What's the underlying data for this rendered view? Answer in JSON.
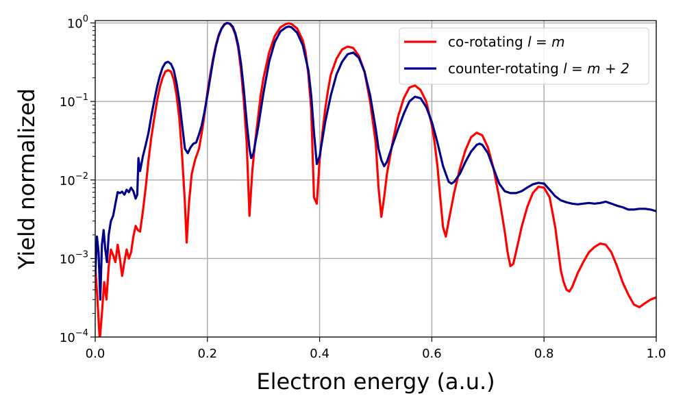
{
  "chart_data": {
    "type": "line",
    "xlabel": "Electron energy (a.u.)",
    "ylabel": "Yield normalized",
    "xlim": [
      0.0,
      1.0
    ],
    "ylim": [
      0.0001,
      1.1
    ],
    "yscale": "log",
    "grid": true,
    "legend_position": "top-right",
    "x_ticks": [
      {
        "value": 0.0,
        "label": "0.0"
      },
      {
        "value": 0.2,
        "label": "0.2"
      },
      {
        "value": 0.4,
        "label": "0.4"
      },
      {
        "value": 0.6,
        "label": "0.6"
      },
      {
        "value": 0.8,
        "label": "0.8"
      },
      {
        "value": 1.0,
        "label": "1.0"
      }
    ],
    "y_ticks": [
      {
        "value": 1,
        "base": "10",
        "exp": "0"
      },
      {
        "value": 0.1,
        "base": "10",
        "exp": "−1"
      },
      {
        "value": 0.01,
        "base": "10",
        "exp": "−2"
      },
      {
        "value": 0.001,
        "base": "10",
        "exp": "−3"
      },
      {
        "value": 0.0001,
        "base": "10",
        "exp": "−4"
      }
    ],
    "series": [
      {
        "name": "co-rotating l = m",
        "legend": {
          "plain": "co-rotating ",
          "math": "l = m"
        },
        "color": "#ff0000",
        "points": [
          [
            0.0,
            0.0008
          ],
          [
            0.004,
            0.0003
          ],
          [
            0.008,
            9e-05
          ],
          [
            0.012,
            0.0002
          ],
          [
            0.016,
            0.0005
          ],
          [
            0.02,
            0.0003
          ],
          [
            0.024,
            0.0008
          ],
          [
            0.028,
            0.0013
          ],
          [
            0.032,
            0.0011
          ],
          [
            0.036,
            0.0009
          ],
          [
            0.04,
            0.0015
          ],
          [
            0.044,
            0.001
          ],
          [
            0.048,
            0.0006
          ],
          [
            0.052,
            0.0009
          ],
          [
            0.056,
            0.0013
          ],
          [
            0.06,
            0.001
          ],
          [
            0.064,
            0.0012
          ],
          [
            0.068,
            0.0019
          ],
          [
            0.072,
            0.0026
          ],
          [
            0.076,
            0.0023
          ],
          [
            0.08,
            0.0022
          ],
          [
            0.085,
            0.004
          ],
          [
            0.09,
            0.008
          ],
          [
            0.095,
            0.018
          ],
          [
            0.1,
            0.035
          ],
          [
            0.105,
            0.06
          ],
          [
            0.11,
            0.1
          ],
          [
            0.115,
            0.15
          ],
          [
            0.12,
            0.2
          ],
          [
            0.125,
            0.24
          ],
          [
            0.13,
            0.25
          ],
          [
            0.135,
            0.24
          ],
          [
            0.14,
            0.19
          ],
          [
            0.145,
            0.12
          ],
          [
            0.15,
            0.06
          ],
          [
            0.155,
            0.02
          ],
          [
            0.16,
            0.005
          ],
          [
            0.163,
            0.0016
          ],
          [
            0.167,
            0.005
          ],
          [
            0.172,
            0.012
          ],
          [
            0.178,
            0.018
          ],
          [
            0.185,
            0.025
          ],
          [
            0.19,
            0.04
          ],
          [
            0.195,
            0.07
          ],
          [
            0.2,
            0.13
          ],
          [
            0.205,
            0.22
          ],
          [
            0.21,
            0.35
          ],
          [
            0.215,
            0.52
          ],
          [
            0.22,
            0.7
          ],
          [
            0.225,
            0.85
          ],
          [
            0.23,
            0.96
          ],
          [
            0.235,
            1.0
          ],
          [
            0.24,
            0.97
          ],
          [
            0.245,
            0.87
          ],
          [
            0.25,
            0.7
          ],
          [
            0.255,
            0.48
          ],
          [
            0.26,
            0.25
          ],
          [
            0.265,
            0.1
          ],
          [
            0.27,
            0.03
          ],
          [
            0.275,
            0.0035
          ],
          [
            0.28,
            0.013
          ],
          [
            0.285,
            0.03
          ],
          [
            0.29,
            0.06
          ],
          [
            0.295,
            0.12
          ],
          [
            0.3,
            0.2
          ],
          [
            0.31,
            0.42
          ],
          [
            0.32,
            0.68
          ],
          [
            0.33,
            0.88
          ],
          [
            0.34,
            0.97
          ],
          [
            0.345,
            0.99
          ],
          [
            0.35,
            0.97
          ],
          [
            0.36,
            0.85
          ],
          [
            0.37,
            0.6
          ],
          [
            0.375,
            0.42
          ],
          [
            0.38,
            0.22
          ],
          [
            0.385,
            0.08
          ],
          [
            0.39,
            0.006
          ],
          [
            0.395,
            0.005
          ],
          [
            0.4,
            0.018
          ],
          [
            0.405,
            0.04
          ],
          [
            0.41,
            0.08
          ],
          [
            0.415,
            0.14
          ],
          [
            0.42,
            0.22
          ],
          [
            0.43,
            0.35
          ],
          [
            0.44,
            0.46
          ],
          [
            0.45,
            0.5
          ],
          [
            0.46,
            0.48
          ],
          [
            0.47,
            0.38
          ],
          [
            0.48,
            0.24
          ],
          [
            0.49,
            0.1
          ],
          [
            0.5,
            0.03
          ],
          [
            0.505,
            0.008
          ],
          [
            0.51,
            0.0034
          ],
          [
            0.515,
            0.006
          ],
          [
            0.52,
            0.012
          ],
          [
            0.53,
            0.03
          ],
          [
            0.54,
            0.065
          ],
          [
            0.55,
            0.11
          ],
          [
            0.56,
            0.15
          ],
          [
            0.57,
            0.16
          ],
          [
            0.58,
            0.14
          ],
          [
            0.59,
            0.1
          ],
          [
            0.6,
            0.05
          ],
          [
            0.605,
            0.03
          ],
          [
            0.61,
            0.015
          ],
          [
            0.615,
            0.006
          ],
          [
            0.62,
            0.0025
          ],
          [
            0.625,
            0.0019
          ],
          [
            0.63,
            0.003
          ],
          [
            0.64,
            0.007
          ],
          [
            0.65,
            0.014
          ],
          [
            0.66,
            0.024
          ],
          [
            0.67,
            0.035
          ],
          [
            0.68,
            0.04
          ],
          [
            0.69,
            0.037
          ],
          [
            0.7,
            0.026
          ],
          [
            0.71,
            0.014
          ],
          [
            0.72,
            0.006
          ],
          [
            0.73,
            0.0022
          ],
          [
            0.735,
            0.0012
          ],
          [
            0.74,
            0.0008
          ],
          [
            0.745,
            0.00085
          ],
          [
            0.75,
            0.0012
          ],
          [
            0.76,
            0.0025
          ],
          [
            0.77,
            0.0045
          ],
          [
            0.78,
            0.0068
          ],
          [
            0.79,
            0.0082
          ],
          [
            0.8,
            0.008
          ],
          [
            0.81,
            0.006
          ],
          [
            0.82,
            0.0025
          ],
          [
            0.83,
            0.0007
          ],
          [
            0.835,
            0.0005
          ],
          [
            0.84,
            0.0004
          ],
          [
            0.845,
            0.00038
          ],
          [
            0.85,
            0.00043
          ],
          [
            0.86,
            0.00065
          ],
          [
            0.87,
            0.0009
          ],
          [
            0.88,
            0.0012
          ],
          [
            0.89,
            0.0014
          ],
          [
            0.9,
            0.00155
          ],
          [
            0.91,
            0.0015
          ],
          [
            0.92,
            0.0012
          ],
          [
            0.93,
            0.0008
          ],
          [
            0.94,
            0.0005
          ],
          [
            0.95,
            0.00035
          ],
          [
            0.96,
            0.00026
          ],
          [
            0.97,
            0.00024
          ],
          [
            0.98,
            0.00027
          ],
          [
            0.99,
            0.0003
          ],
          [
            1.0,
            0.00032
          ]
        ]
      },
      {
        "name": "counter-rotating l = m + 2",
        "legend": {
          "plain": "counter-rotating ",
          "math": "l = m + 2"
        },
        "color": "#00008b",
        "points": [
          [
            0.0,
            0.0006
          ],
          [
            0.003,
            0.0019
          ],
          [
            0.006,
            0.0012
          ],
          [
            0.009,
            0.0003
          ],
          [
            0.012,
            0.0015
          ],
          [
            0.015,
            0.0023
          ],
          [
            0.018,
            0.0013
          ],
          [
            0.021,
            0.0009
          ],
          [
            0.024,
            0.002
          ],
          [
            0.028,
            0.003
          ],
          [
            0.032,
            0.0035
          ],
          [
            0.036,
            0.005
          ],
          [
            0.04,
            0.007
          ],
          [
            0.044,
            0.0068
          ],
          [
            0.048,
            0.0071
          ],
          [
            0.052,
            0.0065
          ],
          [
            0.056,
            0.0075
          ],
          [
            0.06,
            0.007
          ],
          [
            0.064,
            0.008
          ],
          [
            0.068,
            0.0072
          ],
          [
            0.072,
            0.0058
          ],
          [
            0.075,
            0.0065
          ],
          [
            0.077,
            0.019
          ],
          [
            0.08,
            0.013
          ],
          [
            0.085,
            0.02
          ],
          [
            0.09,
            0.028
          ],
          [
            0.095,
            0.04
          ],
          [
            0.1,
            0.065
          ],
          [
            0.105,
            0.1
          ],
          [
            0.11,
            0.15
          ],
          [
            0.115,
            0.21
          ],
          [
            0.12,
            0.27
          ],
          [
            0.125,
            0.31
          ],
          [
            0.13,
            0.32
          ],
          [
            0.135,
            0.3
          ],
          [
            0.14,
            0.25
          ],
          [
            0.145,
            0.17
          ],
          [
            0.15,
            0.1
          ],
          [
            0.155,
            0.05
          ],
          [
            0.16,
            0.025
          ],
          [
            0.165,
            0.022
          ],
          [
            0.17,
            0.026
          ],
          [
            0.175,
            0.029
          ],
          [
            0.18,
            0.03
          ],
          [
            0.185,
            0.038
          ],
          [
            0.19,
            0.05
          ],
          [
            0.195,
            0.075
          ],
          [
            0.2,
            0.12
          ],
          [
            0.205,
            0.2
          ],
          [
            0.21,
            0.33
          ],
          [
            0.215,
            0.5
          ],
          [
            0.22,
            0.68
          ],
          [
            0.225,
            0.84
          ],
          [
            0.23,
            0.95
          ],
          [
            0.235,
            1.0
          ],
          [
            0.24,
            0.98
          ],
          [
            0.245,
            0.9
          ],
          [
            0.25,
            0.73
          ],
          [
            0.255,
            0.52
          ],
          [
            0.26,
            0.3
          ],
          [
            0.265,
            0.14
          ],
          [
            0.27,
            0.055
          ],
          [
            0.275,
            0.025
          ],
          [
            0.278,
            0.019
          ],
          [
            0.282,
            0.022
          ],
          [
            0.29,
            0.045
          ],
          [
            0.3,
            0.13
          ],
          [
            0.31,
            0.32
          ],
          [
            0.32,
            0.57
          ],
          [
            0.33,
            0.78
          ],
          [
            0.34,
            0.88
          ],
          [
            0.345,
            0.9
          ],
          [
            0.35,
            0.88
          ],
          [
            0.36,
            0.75
          ],
          [
            0.37,
            0.52
          ],
          [
            0.38,
            0.25
          ],
          [
            0.385,
            0.12
          ],
          [
            0.39,
            0.04
          ],
          [
            0.395,
            0.016
          ],
          [
            0.4,
            0.02
          ],
          [
            0.41,
            0.055
          ],
          [
            0.42,
            0.12
          ],
          [
            0.43,
            0.22
          ],
          [
            0.44,
            0.32
          ],
          [
            0.45,
            0.4
          ],
          [
            0.46,
            0.42
          ],
          [
            0.47,
            0.36
          ],
          [
            0.48,
            0.24
          ],
          [
            0.49,
            0.12
          ],
          [
            0.5,
            0.045
          ],
          [
            0.505,
            0.025
          ],
          [
            0.51,
            0.018
          ],
          [
            0.515,
            0.015
          ],
          [
            0.52,
            0.017
          ],
          [
            0.53,
            0.028
          ],
          [
            0.54,
            0.045
          ],
          [
            0.55,
            0.07
          ],
          [
            0.56,
            0.1
          ],
          [
            0.57,
            0.115
          ],
          [
            0.58,
            0.11
          ],
          [
            0.59,
            0.085
          ],
          [
            0.6,
            0.055
          ],
          [
            0.61,
            0.03
          ],
          [
            0.62,
            0.015
          ],
          [
            0.63,
            0.0095
          ],
          [
            0.635,
            0.009
          ],
          [
            0.64,
            0.0095
          ],
          [
            0.65,
            0.012
          ],
          [
            0.66,
            0.017
          ],
          [
            0.67,
            0.023
          ],
          [
            0.68,
            0.028
          ],
          [
            0.685,
            0.029
          ],
          [
            0.69,
            0.028
          ],
          [
            0.7,
            0.022
          ],
          [
            0.71,
            0.014
          ],
          [
            0.72,
            0.009
          ],
          [
            0.73,
            0.0072
          ],
          [
            0.74,
            0.0068
          ],
          [
            0.75,
            0.0068
          ],
          [
            0.76,
            0.0072
          ],
          [
            0.77,
            0.008
          ],
          [
            0.78,
            0.0088
          ],
          [
            0.79,
            0.0092
          ],
          [
            0.8,
            0.009
          ],
          [
            0.81,
            0.0075
          ],
          [
            0.82,
            0.0062
          ],
          [
            0.83,
            0.0055
          ],
          [
            0.84,
            0.0052
          ],
          [
            0.85,
            0.005
          ],
          [
            0.86,
            0.0049
          ],
          [
            0.87,
            0.005
          ],
          [
            0.88,
            0.0051
          ],
          [
            0.89,
            0.005
          ],
          [
            0.9,
            0.0051
          ],
          [
            0.91,
            0.0053
          ],
          [
            0.92,
            0.005
          ],
          [
            0.93,
            0.0047
          ],
          [
            0.94,
            0.0045
          ],
          [
            0.95,
            0.0042
          ],
          [
            0.96,
            0.0042
          ],
          [
            0.97,
            0.0043
          ],
          [
            0.98,
            0.0043
          ],
          [
            0.99,
            0.0042
          ],
          [
            1.0,
            0.004
          ]
        ]
      }
    ]
  }
}
